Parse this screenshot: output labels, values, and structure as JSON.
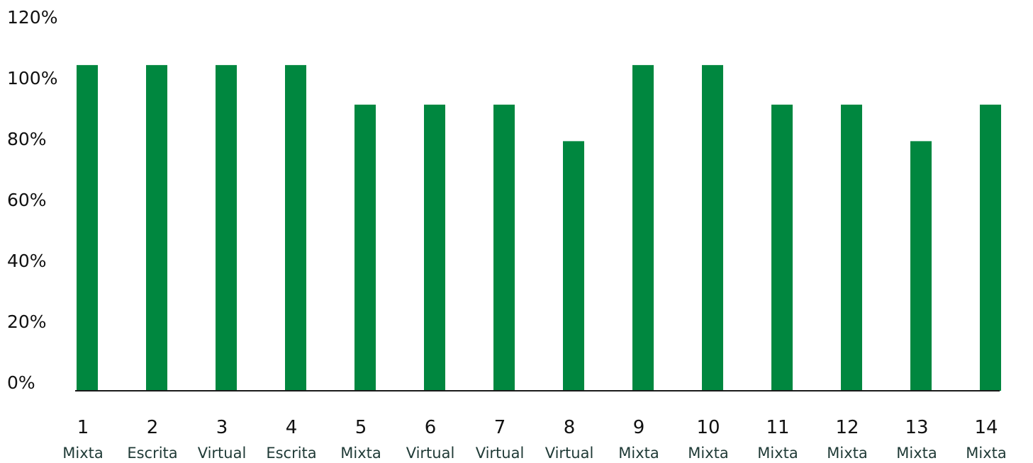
{
  "chart_data": {
    "type": "bar",
    "categories": [
      "1",
      "2",
      "3",
      "4",
      "5",
      "6",
      "7",
      "8",
      "9",
      "10",
      "11",
      "12",
      "13",
      "14"
    ],
    "modalities": [
      "Mixta",
      "Escrita",
      "Virtual",
      "Escrita",
      "Mixta",
      "Virtual",
      "Virtual",
      "Virtual",
      "Mixta",
      "Mixta",
      "Mixta",
      "Mixta",
      "Mixta",
      "Mixta"
    ],
    "values": [
      107,
      107,
      107,
      107,
      94,
      94,
      94,
      82,
      107,
      107,
      94,
      94,
      82,
      94
    ],
    "title": "",
    "xlabel": "",
    "ylabel": "",
    "ylim": [
      0,
      120
    ],
    "yticks": [
      "0%",
      "20%",
      "40%",
      "60%",
      "80%",
      "100%",
      "120%"
    ],
    "grid": false,
    "legend": "none",
    "bar_color": "#00873f",
    "axis_color": "#1a1a1a"
  }
}
